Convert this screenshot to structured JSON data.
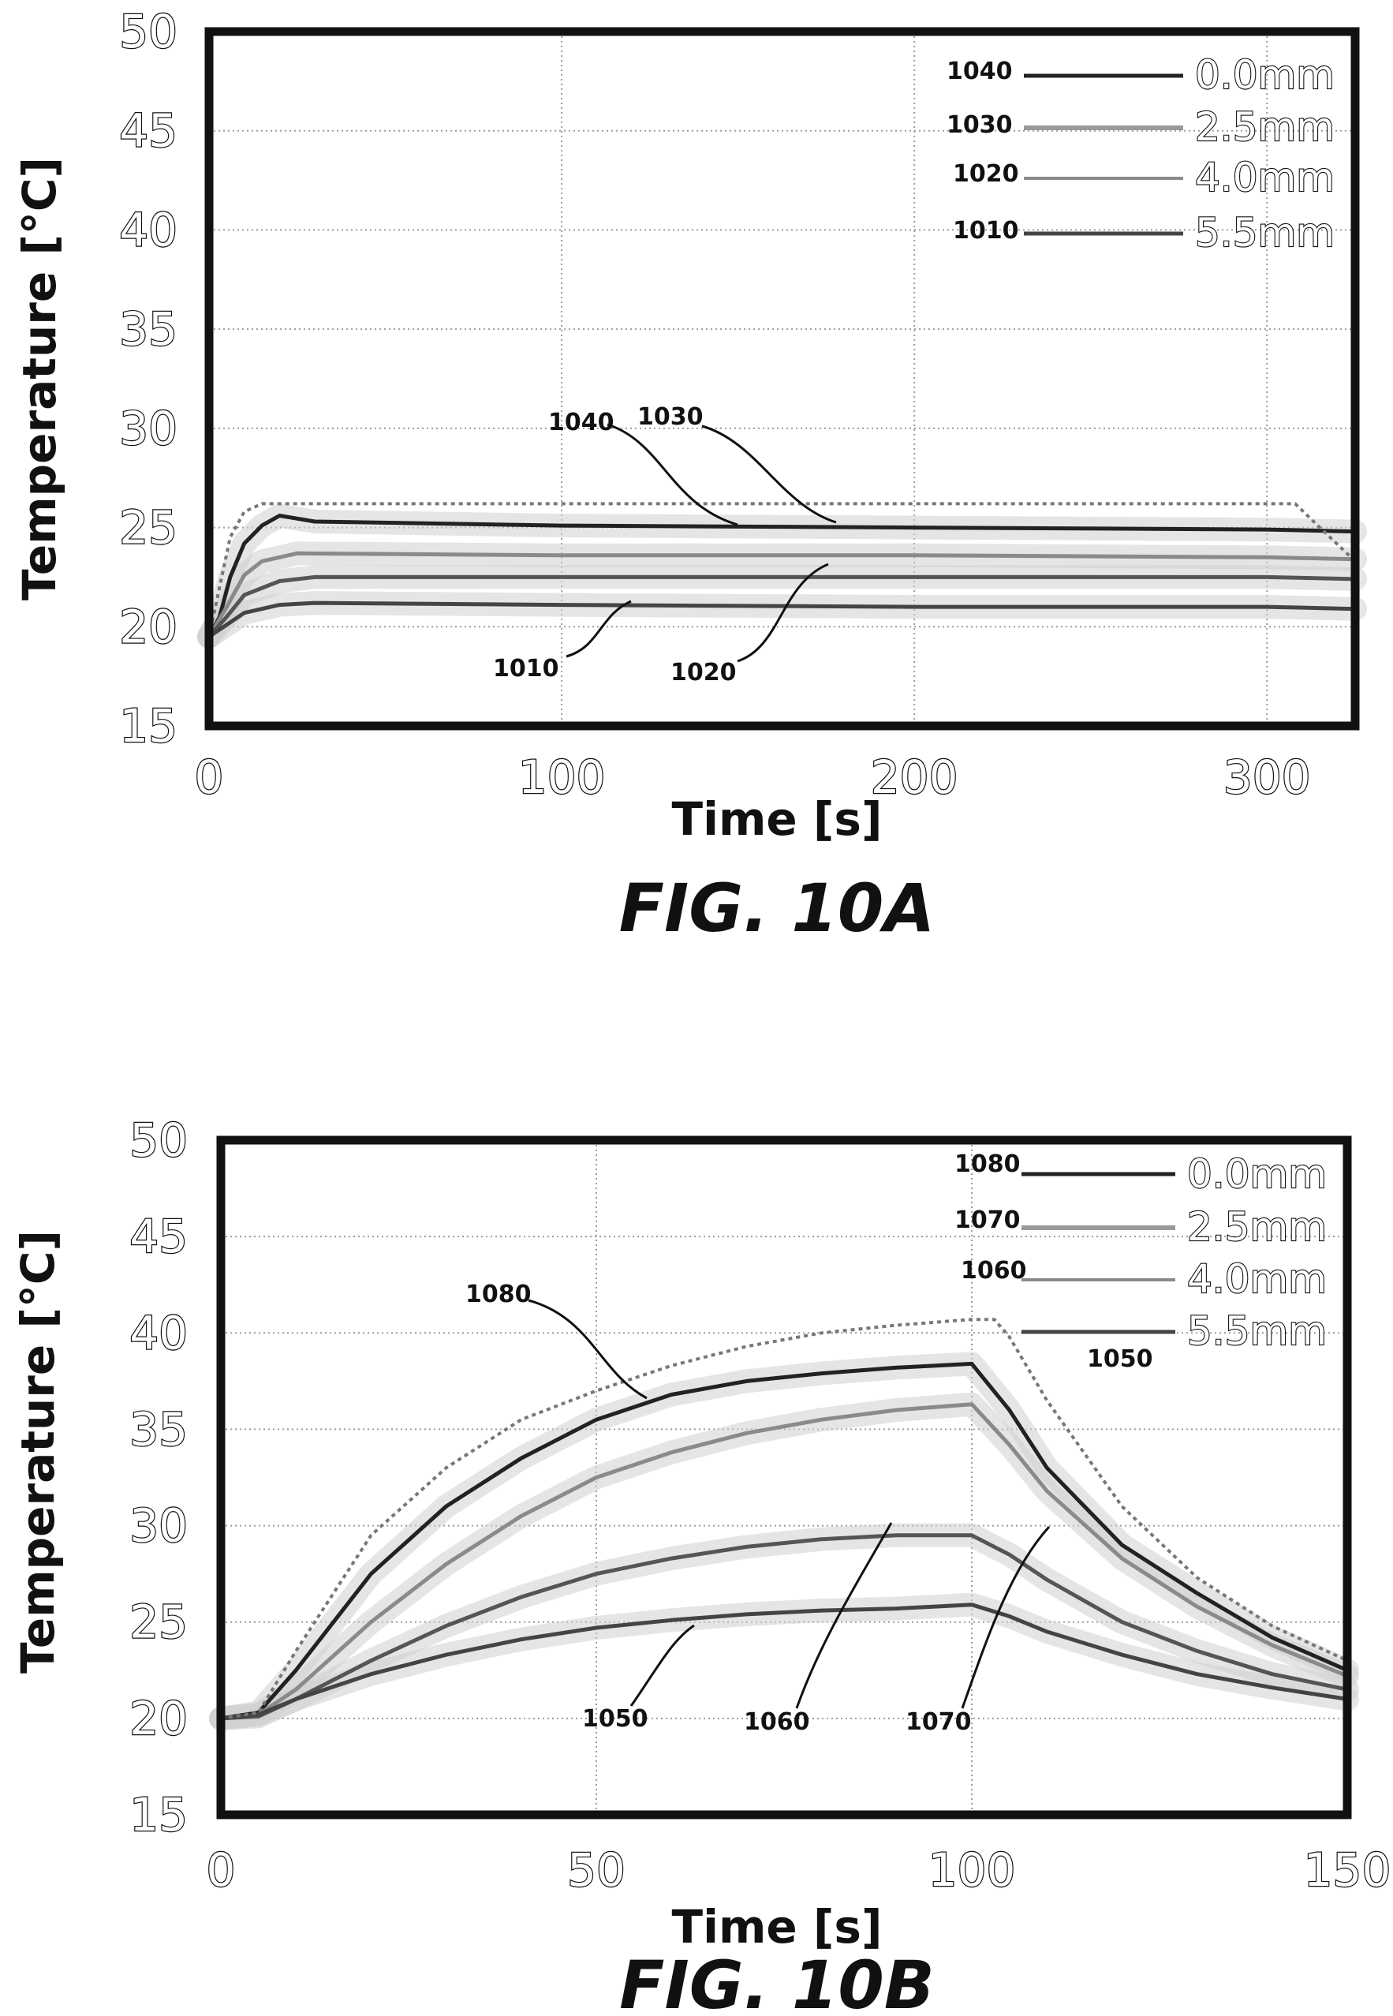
{
  "chart_data": [
    {
      "type": "line",
      "caption": "FIG. 10A",
      "xlabel": "Time [s]",
      "ylabel": "Temperature [°C]",
      "xlim": [
        0,
        325
      ],
      "ylim": [
        15,
        50
      ],
      "x_ticks": [
        "0",
        "100",
        "200",
        "300"
      ],
      "y_ticks": [
        "15",
        "20",
        "25",
        "30",
        "35",
        "40",
        "45",
        "50"
      ],
      "grid": true,
      "legend_position": "top-right",
      "series": [
        {
          "name": "0.0mm",
          "ref": "1040",
          "color": "#222222",
          "dashed": false,
          "points": [
            [
              0,
              19.5
            ],
            [
              3,
              20.5
            ],
            [
              6,
              22.5
            ],
            [
              10,
              24.2
            ],
            [
              15,
              25.1
            ],
            [
              20,
              25.6
            ],
            [
              30,
              25.3
            ],
            [
              100,
              25.1
            ],
            [
              200,
              25.0
            ],
            [
              300,
              24.9
            ],
            [
              325,
              24.8
            ]
          ]
        },
        {
          "name": "2.5mm",
          "ref": "1030",
          "color": "#8a8a8a",
          "dashed": false,
          "points": [
            [
              0,
              19.5
            ],
            [
              5,
              21.0
            ],
            [
              10,
              22.6
            ],
            [
              15,
              23.3
            ],
            [
              25,
              23.7
            ],
            [
              100,
              23.6
            ],
            [
              200,
              23.6
            ],
            [
              300,
              23.5
            ],
            [
              325,
              23.4
            ]
          ]
        },
        {
          "name": "4.0mm",
          "ref": "1020",
          "color": "#555555",
          "dashed": false,
          "points": [
            [
              0,
              19.5
            ],
            [
              5,
              20.5
            ],
            [
              10,
              21.6
            ],
            [
              20,
              22.3
            ],
            [
              30,
              22.5
            ],
            [
              100,
              22.5
            ],
            [
              200,
              22.5
            ],
            [
              300,
              22.5
            ],
            [
              325,
              22.4
            ]
          ]
        },
        {
          "name": "5.5mm",
          "ref": "1010",
          "color": "#444444",
          "dashed": false,
          "points": [
            [
              0,
              19.5
            ],
            [
              5,
              20.1
            ],
            [
              10,
              20.7
            ],
            [
              20,
              21.1
            ],
            [
              30,
              21.2
            ],
            [
              100,
              21.1
            ],
            [
              200,
              21.0
            ],
            [
              300,
              21.0
            ],
            [
              325,
              20.9
            ]
          ]
        },
        {
          "name": "",
          "color": "#777777",
          "dashed": true,
          "points": [
            [
              0,
              19.5
            ],
            [
              3,
              22.0
            ],
            [
              6,
              24.5
            ],
            [
              10,
              25.8
            ],
            [
              15,
              26.2
            ],
            [
              100,
              26.2
            ],
            [
              200,
              26.2
            ],
            [
              308,
              26.2
            ],
            [
              315,
              25.0
            ],
            [
              325,
              23.3
            ]
          ]
        }
      ]
    },
    {
      "type": "line",
      "caption": "FIG. 10B",
      "xlabel": "Time [s]",
      "ylabel": "Temperature [°C]",
      "xlim": [
        0,
        150
      ],
      "ylim": [
        15,
        50
      ],
      "x_ticks": [
        "0",
        "50",
        "100",
        "150"
      ],
      "y_ticks": [
        "15",
        "20",
        "25",
        "30",
        "35",
        "40",
        "45",
        "50"
      ],
      "grid": true,
      "legend_position": "top-right",
      "series": [
        {
          "name": "0.0mm",
          "ref": "1080",
          "color": "#222222",
          "dashed": false,
          "points": [
            [
              0,
              20.0
            ],
            [
              5,
              20.3
            ],
            [
              10,
              22.5
            ],
            [
              20,
              27.5
            ],
            [
              30,
              31.0
            ],
            [
              40,
              33.5
            ],
            [
              50,
              35.5
            ],
            [
              60,
              36.8
            ],
            [
              70,
              37.5
            ],
            [
              80,
              37.9
            ],
            [
              90,
              38.2
            ],
            [
              100,
              38.4
            ],
            [
              105,
              36.0
            ],
            [
              110,
              33.0
            ],
            [
              120,
              29.0
            ],
            [
              130,
              26.5
            ],
            [
              140,
              24.2
            ],
            [
              150,
              22.5
            ]
          ]
        },
        {
          "name": "2.5mm",
          "ref": "1070",
          "color": "#8a8a8a",
          "dashed": false,
          "points": [
            [
              0,
              20.0
            ],
            [
              5,
              20.2
            ],
            [
              10,
              21.5
            ],
            [
              20,
              25.0
            ],
            [
              30,
              28.0
            ],
            [
              40,
              30.5
            ],
            [
              50,
              32.5
            ],
            [
              60,
              33.8
            ],
            [
              70,
              34.8
            ],
            [
              80,
              35.5
            ],
            [
              90,
              36.0
            ],
            [
              100,
              36.3
            ],
            [
              105,
              34.2
            ],
            [
              110,
              31.8
            ],
            [
              120,
              28.3
            ],
            [
              130,
              25.8
            ],
            [
              140,
              23.8
            ],
            [
              150,
              22.2
            ]
          ]
        },
        {
          "name": "4.0mm",
          "ref": "1060",
          "color": "#555555",
          "dashed": false,
          "points": [
            [
              0,
              20.0
            ],
            [
              5,
              20.1
            ],
            [
              10,
              21.0
            ],
            [
              20,
              23.0
            ],
            [
              30,
              24.8
            ],
            [
              40,
              26.3
            ],
            [
              50,
              27.5
            ],
            [
              60,
              28.3
            ],
            [
              70,
              28.9
            ],
            [
              80,
              29.3
            ],
            [
              90,
              29.5
            ],
            [
              100,
              29.5
            ],
            [
              105,
              28.5
            ],
            [
              110,
              27.2
            ],
            [
              120,
              25.0
            ],
            [
              130,
              23.5
            ],
            [
              140,
              22.3
            ],
            [
              150,
              21.5
            ]
          ]
        },
        {
          "name": "5.5mm",
          "ref": "1050",
          "color": "#444444",
          "dashed": false,
          "points": [
            [
              0,
              20.0
            ],
            [
              5,
              20.2
            ],
            [
              10,
              21.0
            ],
            [
              20,
              22.3
            ],
            [
              30,
              23.3
            ],
            [
              40,
              24.1
            ],
            [
              50,
              24.7
            ],
            [
              60,
              25.1
            ],
            [
              70,
              25.4
            ],
            [
              80,
              25.6
            ],
            [
              90,
              25.7
            ],
            [
              100,
              25.9
            ],
            [
              105,
              25.3
            ],
            [
              110,
              24.5
            ],
            [
              120,
              23.3
            ],
            [
              130,
              22.3
            ],
            [
              140,
              21.6
            ],
            [
              150,
              21.0
            ]
          ]
        },
        {
          "name": "",
          "color": "#777777",
          "dashed": true,
          "points": [
            [
              0,
              20.0
            ],
            [
              5,
              20.3
            ],
            [
              10,
              23.5
            ],
            [
              20,
              29.5
            ],
            [
              30,
              33.0
            ],
            [
              40,
              35.5
            ],
            [
              50,
              37.0
            ],
            [
              60,
              38.3
            ],
            [
              70,
              39.3
            ],
            [
              80,
              40.0
            ],
            [
              90,
              40.4
            ],
            [
              100,
              40.7
            ],
            [
              103,
              40.7
            ],
            [
              105,
              39.8
            ],
            [
              110,
              36.5
            ],
            [
              120,
              31.0
            ],
            [
              130,
              27.3
            ],
            [
              140,
              24.8
            ],
            [
              150,
              23.0
            ]
          ]
        }
      ]
    }
  ],
  "figA": {
    "caption": "FIG. 10A",
    "xlabel": "Time [s]",
    "ylabel": "Temperature [°C]",
    "legend": [
      {
        "ref": "1040",
        "label": "0.0mm"
      },
      {
        "ref": "1030",
        "label": "2.5mm"
      },
      {
        "ref": "1020",
        "label": "4.0mm"
      },
      {
        "ref": "1010",
        "label": "5.5mm"
      }
    ],
    "callouts": {
      "c1040": "1040",
      "c1030": "1030",
      "c1010": "1010",
      "c1020": "1020"
    }
  },
  "figB": {
    "caption": "FIG. 10B",
    "xlabel": "Time [s]",
    "ylabel": "Temperature [°C]",
    "legend": [
      {
        "ref": "1080",
        "label": "0.0mm"
      },
      {
        "ref": "1070",
        "label": "2.5mm"
      },
      {
        "ref": "1060",
        "label": "4.0mm"
      },
      {
        "ref": "",
        "label": "5.5mm"
      }
    ],
    "callouts": {
      "c1080": "1080",
      "c1050top": "1050",
      "c1050": "1050",
      "c1060": "1060",
      "c1070": "1070"
    }
  }
}
